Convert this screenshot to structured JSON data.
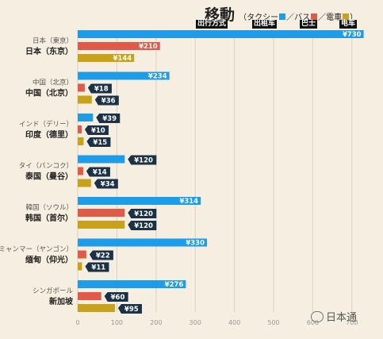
{
  "title": {
    "main": "移動",
    "sub_open": "（タクシー",
    "sep1": "／バス",
    "sep2": "／電車",
    "close": "）",
    "cn_taxi": "出行方式",
    "cn_car": "出租车",
    "cn_bus": "巴士",
    "cn_train": "电车"
  },
  "watermark": "日本通",
  "colors": {
    "taxi": "#1e9ce8",
    "bus": "#e05a4a",
    "train": "#c8a21a",
    "label_bg": "#1b3148",
    "grid": "#d9d2c2",
    "bg": "#f5eee1"
  },
  "chart_data": {
    "type": "bar",
    "orientation": "horizontal",
    "categories_ja": [
      "日本（東京）",
      "中国（北京）",
      "インド（デリー）",
      "タイ（バンコク）",
      "韓国（ソウル）",
      "ミャンマー（ヤンゴン）",
      "シンガポール"
    ],
    "categories_cn": [
      "日本（东京）",
      "中国（北京）",
      "印度（德里）",
      "泰国（曼谷）",
      "韩国（首尔）",
      "缅甸（仰光）",
      "新加坡"
    ],
    "series": [
      {
        "name": "タクシー",
        "values": [
          730,
          234,
          39,
          120,
          314,
          330,
          276
        ],
        "labels": [
          "¥730",
          "¥234",
          "¥39",
          "¥120",
          "¥314",
          "¥330",
          "¥276"
        ]
      },
      {
        "name": "バス",
        "values": [
          210,
          18,
          10,
          14,
          120,
          22,
          60
        ],
        "labels": [
          "¥210",
          "¥18",
          "¥10",
          "¥14",
          "¥120",
          "¥22",
          "¥60"
        ]
      },
      {
        "name": "電車",
        "values": [
          144,
          36,
          15,
          34,
          120,
          11,
          95
        ],
        "labels": [
          "¥144",
          "¥36",
          "¥15",
          "¥34",
          "¥120",
          "¥11",
          "¥95"
        ]
      }
    ],
    "xticks": [
      "0",
      "100",
      "200",
      "300",
      "400",
      "500",
      "600",
      "700"
    ],
    "xlim": [
      0,
      740
    ],
    "grid": true
  }
}
